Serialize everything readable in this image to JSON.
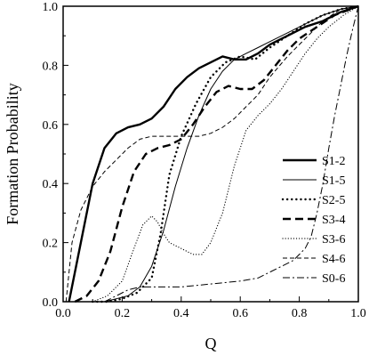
{
  "chart_data": {
    "type": "line",
    "xlabel": "Q",
    "ylabel": "Formation Probability",
    "xlim": [
      0,
      1
    ],
    "ylim": [
      0,
      1
    ],
    "xticks": [
      "0.0",
      "0.2",
      "0.4",
      "0.6",
      "0.8",
      "1.0"
    ],
    "yticks": [
      "0.0",
      "0.2",
      "0.4",
      "0.6",
      "0.8",
      "1.0"
    ],
    "grid": false,
    "legend_position": "right",
    "series": [
      {
        "name": "S1-2",
        "style": "thick-solid",
        "color": "#000000",
        "x": [
          0.02,
          0.06,
          0.1,
          0.14,
          0.18,
          0.22,
          0.26,
          0.3,
          0.34,
          0.38,
          0.42,
          0.46,
          0.5,
          0.54,
          0.58,
          0.62,
          0.66,
          0.7,
          0.76,
          0.82,
          0.88,
          0.94,
          1.0
        ],
        "y": [
          0.0,
          0.2,
          0.4,
          0.52,
          0.57,
          0.59,
          0.6,
          0.62,
          0.66,
          0.72,
          0.76,
          0.79,
          0.81,
          0.83,
          0.82,
          0.82,
          0.84,
          0.87,
          0.9,
          0.93,
          0.95,
          0.98,
          1.0
        ]
      },
      {
        "name": "S1-5",
        "style": "thin-solid",
        "color": "#000000",
        "x": [
          0.1,
          0.14,
          0.18,
          0.22,
          0.26,
          0.3,
          0.34,
          0.38,
          0.42,
          0.46,
          0.5,
          0.54,
          0.58,
          0.62,
          0.66,
          0.7,
          0.76,
          0.82,
          0.88,
          0.94,
          1.0
        ],
        "y": [
          0.0,
          0.0,
          0.01,
          0.02,
          0.05,
          0.12,
          0.24,
          0.39,
          0.52,
          0.63,
          0.72,
          0.78,
          0.82,
          0.84,
          0.86,
          0.88,
          0.91,
          0.94,
          0.97,
          0.99,
          1.0
        ]
      },
      {
        "name": "S2-5",
        "style": "dotted",
        "color": "#000000",
        "x": [
          0.1,
          0.15,
          0.2,
          0.25,
          0.3,
          0.33,
          0.36,
          0.4,
          0.45,
          0.5,
          0.55,
          0.6,
          0.65,
          0.7,
          0.76,
          0.82,
          0.88,
          0.94,
          1.0
        ],
        "y": [
          0.0,
          0.0,
          0.01,
          0.03,
          0.08,
          0.23,
          0.43,
          0.56,
          0.67,
          0.76,
          0.81,
          0.83,
          0.82,
          0.86,
          0.9,
          0.94,
          0.97,
          0.99,
          1.0
        ]
      },
      {
        "name": "S3-4",
        "style": "dashed",
        "color": "#000000",
        "x": [
          0.04,
          0.08,
          0.12,
          0.16,
          0.2,
          0.24,
          0.28,
          0.32,
          0.36,
          0.4,
          0.44,
          0.48,
          0.52,
          0.56,
          0.6,
          0.64,
          0.68,
          0.72,
          0.76,
          0.8,
          0.86,
          0.92,
          1.0
        ],
        "y": [
          0.0,
          0.02,
          0.07,
          0.17,
          0.32,
          0.44,
          0.5,
          0.52,
          0.53,
          0.55,
          0.6,
          0.66,
          0.71,
          0.73,
          0.72,
          0.72,
          0.75,
          0.8,
          0.85,
          0.89,
          0.93,
          0.97,
          1.0
        ]
      },
      {
        "name": "S3-6",
        "style": "fine-dotted",
        "color": "#000000",
        "x": [
          0.1,
          0.15,
          0.2,
          0.24,
          0.27,
          0.3,
          0.32,
          0.34,
          0.36,
          0.4,
          0.44,
          0.47,
          0.5,
          0.54,
          0.58,
          0.62,
          0.66,
          0.7,
          0.74,
          0.78,
          0.82,
          0.86,
          0.9,
          0.95,
          1.0
        ],
        "y": [
          0.0,
          0.02,
          0.07,
          0.18,
          0.26,
          0.29,
          0.27,
          0.23,
          0.2,
          0.18,
          0.16,
          0.16,
          0.2,
          0.3,
          0.46,
          0.58,
          0.63,
          0.67,
          0.72,
          0.78,
          0.84,
          0.89,
          0.93,
          0.97,
          1.0
        ]
      },
      {
        "name": "S4-6",
        "style": "thin-dashed",
        "color": "#000000",
        "x": [
          0.01,
          0.03,
          0.06,
          0.1,
          0.14,
          0.18,
          0.22,
          0.26,
          0.3,
          0.34,
          0.38,
          0.42,
          0.46,
          0.5,
          0.54,
          0.58,
          0.62,
          0.66,
          0.7,
          0.76,
          0.82,
          0.88,
          0.94,
          1.0
        ],
        "y": [
          0.0,
          0.2,
          0.31,
          0.39,
          0.44,
          0.48,
          0.52,
          0.55,
          0.56,
          0.56,
          0.56,
          0.56,
          0.56,
          0.57,
          0.59,
          0.62,
          0.66,
          0.7,
          0.76,
          0.83,
          0.89,
          0.95,
          0.99,
          1.0
        ]
      },
      {
        "name": "S0-6",
        "style": "dash-dot",
        "color": "#000000",
        "x": [
          0.14,
          0.18,
          0.22,
          0.26,
          0.3,
          0.4,
          0.5,
          0.6,
          0.66,
          0.7,
          0.74,
          0.78,
          0.8,
          0.82,
          0.84,
          0.86,
          0.88,
          0.9,
          0.92,
          0.94,
          0.96,
          0.98,
          1.0
        ],
        "y": [
          0.0,
          0.02,
          0.04,
          0.05,
          0.05,
          0.05,
          0.06,
          0.07,
          0.08,
          0.1,
          0.12,
          0.14,
          0.16,
          0.18,
          0.22,
          0.3,
          0.4,
          0.52,
          0.63,
          0.73,
          0.83,
          0.92,
          1.0
        ]
      }
    ]
  }
}
